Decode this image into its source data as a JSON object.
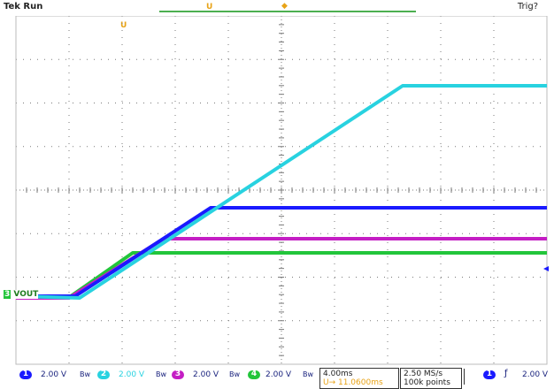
{
  "header": {
    "status": "Tek Run",
    "trigger_status": "Trig?",
    "marker_u": "U"
  },
  "channel_label": {
    "text": "VOUT",
    "marker": "3"
  },
  "waveforms": {
    "colors": {
      "ch1": "#1a1aff",
      "ch2": "#28d2e0",
      "ch3": "#c41ec4",
      "ch4": "#22c53a",
      "grid": "#7a7a7a"
    }
  },
  "status_bar": {
    "ch1": {
      "num": "1",
      "scale": "2.00 V",
      "coupling": "Bw"
    },
    "ch2": {
      "num": "2",
      "scale": "2.00 V",
      "coupling": "Bw"
    },
    "ch3": {
      "num": "3",
      "scale": "2.00 V",
      "coupling": "Bw"
    },
    "ch4": {
      "num": "4",
      "scale": "2.00 V",
      "coupling": "Bw"
    },
    "timebase": "4.00ms",
    "trigger_pos": "U→ 11.0600ms",
    "sample_rate": "2.50 MS/s",
    "record_length": "100k points",
    "trigger_source": "1",
    "trigger_slope": "ƒ",
    "trigger_level": "2.00 V"
  }
}
